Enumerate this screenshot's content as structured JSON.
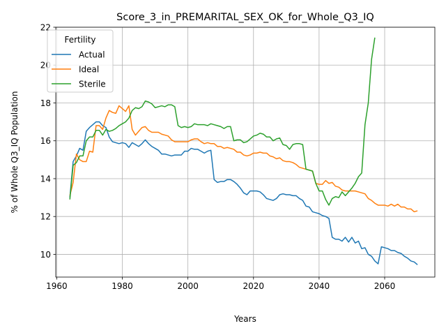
{
  "chart_data": {
    "type": "line",
    "title": "Score_3_in_PREMARITAL_SEX_OK_for_Whole_Q3_IQ",
    "xlabel": "Years",
    "ylabel": "% of Whole Q3_IQ Population",
    "xlim": [
      1959.7,
      2075.3
    ],
    "ylim": [
      8.8,
      22.0
    ],
    "xticks": [
      1960,
      1980,
      2000,
      2020,
      2040,
      2060
    ],
    "yticks": [
      10,
      12,
      14,
      16,
      18,
      20,
      22
    ],
    "grid": true,
    "legend": {
      "title": "Fertility",
      "placement": "top-left"
    },
    "series": [
      {
        "name": "Actual",
        "color": "#1f77b4",
        "points": [
          [
            1964,
            13.0
          ],
          [
            1965,
            14.9
          ],
          [
            1966,
            15.2
          ],
          [
            1967,
            15.6
          ],
          [
            1968,
            15.5
          ],
          [
            1969,
            16.5
          ],
          [
            1970,
            16.7
          ],
          [
            1971,
            16.85
          ],
          [
            1972,
            17.0
          ],
          [
            1973,
            17.0
          ],
          [
            1974,
            16.8
          ],
          [
            1975,
            16.7
          ],
          [
            1976,
            16.2
          ],
          [
            1977,
            15.95
          ],
          [
            1978,
            15.9
          ],
          [
            1979,
            15.85
          ],
          [
            1980,
            15.9
          ],
          [
            1981,
            15.85
          ],
          [
            1982,
            15.65
          ],
          [
            1983,
            15.9
          ],
          [
            1984,
            15.8
          ],
          [
            1985,
            15.7
          ],
          [
            1986,
            15.85
          ],
          [
            1987,
            16.05
          ],
          [
            1988,
            15.85
          ],
          [
            1989,
            15.7
          ],
          [
            1990,
            15.6
          ],
          [
            1991,
            15.5
          ],
          [
            1992,
            15.3
          ],
          [
            1993,
            15.3
          ],
          [
            1994,
            15.25
          ],
          [
            1995,
            15.2
          ],
          [
            1996,
            15.25
          ],
          [
            1997,
            15.25
          ],
          [
            1998,
            15.25
          ],
          [
            1999,
            15.45
          ],
          [
            2000,
            15.45
          ],
          [
            2001,
            15.6
          ],
          [
            2002,
            15.55
          ],
          [
            2003,
            15.55
          ],
          [
            2004,
            15.45
          ],
          [
            2005,
            15.35
          ],
          [
            2006,
            15.45
          ],
          [
            2007,
            15.5
          ],
          [
            2008,
            13.95
          ],
          [
            2009,
            13.8
          ],
          [
            2010,
            13.85
          ],
          [
            2011,
            13.85
          ],
          [
            2012,
            13.95
          ],
          [
            2013,
            13.95
          ],
          [
            2014,
            13.85
          ],
          [
            2015,
            13.7
          ],
          [
            2016,
            13.5
          ],
          [
            2017,
            13.25
          ],
          [
            2018,
            13.15
          ],
          [
            2019,
            13.35
          ],
          [
            2020,
            13.35
          ],
          [
            2021,
            13.35
          ],
          [
            2022,
            13.3
          ],
          [
            2023,
            13.15
          ],
          [
            2024,
            12.95
          ],
          [
            2025,
            12.9
          ],
          [
            2026,
            12.85
          ],
          [
            2027,
            12.95
          ],
          [
            2028,
            13.15
          ],
          [
            2029,
            13.2
          ],
          [
            2030,
            13.15
          ],
          [
            2031,
            13.15
          ],
          [
            2032,
            13.1
          ],
          [
            2033,
            13.1
          ],
          [
            2034,
            12.95
          ],
          [
            2035,
            12.85
          ],
          [
            2036,
            12.55
          ],
          [
            2037,
            12.5
          ],
          [
            2038,
            12.25
          ],
          [
            2039,
            12.2
          ],
          [
            2040,
            12.15
          ],
          [
            2041,
            12.05
          ],
          [
            2042,
            12.0
          ],
          [
            2043,
            11.9
          ],
          [
            2044,
            10.9
          ],
          [
            2045,
            10.8
          ],
          [
            2046,
            10.8
          ],
          [
            2047,
            10.7
          ],
          [
            2048,
            10.9
          ],
          [
            2049,
            10.65
          ],
          [
            2050,
            10.9
          ],
          [
            2051,
            10.6
          ],
          [
            2052,
            10.7
          ],
          [
            2053,
            10.3
          ],
          [
            2054,
            10.35
          ],
          [
            2055,
            10.0
          ],
          [
            2056,
            9.9
          ],
          [
            2057,
            9.65
          ],
          [
            2058,
            9.5
          ],
          [
            2059,
            10.4
          ],
          [
            2060,
            10.35
          ],
          [
            2061,
            10.3
          ],
          [
            2062,
            10.2
          ],
          [
            2063,
            10.2
          ],
          [
            2064,
            10.1
          ],
          [
            2065,
            10.05
          ],
          [
            2066,
            9.9
          ],
          [
            2067,
            9.8
          ],
          [
            2068,
            9.65
          ],
          [
            2069,
            9.6
          ],
          [
            2070,
            9.45
          ]
        ]
      },
      {
        "name": "Ideal",
        "color": "#ff7f0e",
        "points": [
          [
            1964,
            13.1
          ],
          [
            1965,
            13.8
          ],
          [
            1966,
            15.3
          ],
          [
            1967,
            15.0
          ],
          [
            1968,
            14.9
          ],
          [
            1969,
            14.9
          ],
          [
            1970,
            15.45
          ],
          [
            1971,
            15.4
          ],
          [
            1972,
            16.8
          ],
          [
            1973,
            16.8
          ],
          [
            1974,
            16.6
          ],
          [
            1975,
            17.2
          ],
          [
            1976,
            17.6
          ],
          [
            1977,
            17.5
          ],
          [
            1978,
            17.45
          ],
          [
            1979,
            17.85
          ],
          [
            1980,
            17.7
          ],
          [
            1981,
            17.55
          ],
          [
            1982,
            17.85
          ],
          [
            1983,
            16.6
          ],
          [
            1984,
            16.3
          ],
          [
            1985,
            16.5
          ],
          [
            1986,
            16.7
          ],
          [
            1987,
            16.75
          ],
          [
            1988,
            16.55
          ],
          [
            1989,
            16.45
          ],
          [
            1990,
            16.45
          ],
          [
            1991,
            16.45
          ],
          [
            1992,
            16.35
          ],
          [
            1993,
            16.3
          ],
          [
            1994,
            16.25
          ],
          [
            1995,
            16.05
          ],
          [
            1996,
            15.95
          ],
          [
            1997,
            15.95
          ],
          [
            1998,
            15.95
          ],
          [
            1999,
            15.95
          ],
          [
            2000,
            15.95
          ],
          [
            2001,
            16.05
          ],
          [
            2002,
            16.1
          ],
          [
            2003,
            16.1
          ],
          [
            2004,
            15.95
          ],
          [
            2005,
            15.85
          ],
          [
            2006,
            15.9
          ],
          [
            2007,
            15.85
          ],
          [
            2008,
            15.85
          ],
          [
            2009,
            15.7
          ],
          [
            2010,
            15.7
          ],
          [
            2011,
            15.6
          ],
          [
            2012,
            15.65
          ],
          [
            2013,
            15.6
          ],
          [
            2014,
            15.55
          ],
          [
            2015,
            15.4
          ],
          [
            2016,
            15.4
          ],
          [
            2017,
            15.25
          ],
          [
            2018,
            15.2
          ],
          [
            2019,
            15.25
          ],
          [
            2020,
            15.35
          ],
          [
            2021,
            15.35
          ],
          [
            2022,
            15.4
          ],
          [
            2023,
            15.35
          ],
          [
            2024,
            15.35
          ],
          [
            2025,
            15.2
          ],
          [
            2026,
            15.15
          ],
          [
            2027,
            15.05
          ],
          [
            2028,
            15.1
          ],
          [
            2029,
            14.95
          ],
          [
            2030,
            14.9
          ],
          [
            2031,
            14.9
          ],
          [
            2032,
            14.85
          ],
          [
            2033,
            14.75
          ],
          [
            2034,
            14.6
          ],
          [
            2035,
            14.55
          ],
          [
            2036,
            14.5
          ],
          [
            2037,
            14.45
          ],
          [
            2038,
            14.4
          ],
          [
            2039,
            13.75
          ],
          [
            2040,
            13.7
          ],
          [
            2041,
            13.7
          ],
          [
            2042,
            13.9
          ],
          [
            2043,
            13.75
          ],
          [
            2044,
            13.8
          ],
          [
            2045,
            13.6
          ],
          [
            2046,
            13.55
          ],
          [
            2047,
            13.4
          ],
          [
            2048,
            13.35
          ],
          [
            2049,
            13.35
          ],
          [
            2050,
            13.35
          ],
          [
            2051,
            13.35
          ],
          [
            2052,
            13.3
          ],
          [
            2053,
            13.25
          ],
          [
            2054,
            13.2
          ],
          [
            2055,
            12.95
          ],
          [
            2056,
            12.85
          ],
          [
            2057,
            12.7
          ],
          [
            2058,
            12.6
          ],
          [
            2059,
            12.6
          ],
          [
            2060,
            12.6
          ],
          [
            2061,
            12.55
          ],
          [
            2062,
            12.65
          ],
          [
            2063,
            12.55
          ],
          [
            2064,
            12.65
          ],
          [
            2065,
            12.5
          ],
          [
            2066,
            12.5
          ],
          [
            2067,
            12.4
          ],
          [
            2068,
            12.4
          ],
          [
            2069,
            12.25
          ],
          [
            2070,
            12.3
          ]
        ]
      },
      {
        "name": "Sterile",
        "color": "#2ca02c",
        "points": [
          [
            1964,
            12.9
          ],
          [
            1965,
            14.7
          ],
          [
            1966,
            14.85
          ],
          [
            1967,
            15.2
          ],
          [
            1968,
            15.2
          ],
          [
            1969,
            16.0
          ],
          [
            1970,
            16.2
          ],
          [
            1971,
            16.2
          ],
          [
            1972,
            16.55
          ],
          [
            1973,
            16.55
          ],
          [
            1974,
            16.3
          ],
          [
            1975,
            16.6
          ],
          [
            1976,
            16.5
          ],
          [
            1977,
            16.55
          ],
          [
            1978,
            16.65
          ],
          [
            1979,
            16.8
          ],
          [
            1980,
            16.9
          ],
          [
            1981,
            17.0
          ],
          [
            1982,
            17.2
          ],
          [
            1983,
            17.6
          ],
          [
            1984,
            17.75
          ],
          [
            1985,
            17.7
          ],
          [
            1986,
            17.8
          ],
          [
            1987,
            18.1
          ],
          [
            1988,
            18.05
          ],
          [
            1989,
            17.95
          ],
          [
            1990,
            17.75
          ],
          [
            1991,
            17.8
          ],
          [
            1992,
            17.85
          ],
          [
            1993,
            17.8
          ],
          [
            1994,
            17.9
          ],
          [
            1995,
            17.9
          ],
          [
            1996,
            17.8
          ],
          [
            1997,
            16.8
          ],
          [
            1998,
            16.7
          ],
          [
            1999,
            16.75
          ],
          [
            2000,
            16.7
          ],
          [
            2001,
            16.75
          ],
          [
            2002,
            16.9
          ],
          [
            2003,
            16.85
          ],
          [
            2004,
            16.85
          ],
          [
            2005,
            16.85
          ],
          [
            2006,
            16.8
          ],
          [
            2007,
            16.9
          ],
          [
            2008,
            16.85
          ],
          [
            2009,
            16.8
          ],
          [
            2010,
            16.75
          ],
          [
            2011,
            16.65
          ],
          [
            2012,
            16.75
          ],
          [
            2013,
            16.75
          ],
          [
            2014,
            16.0
          ],
          [
            2015,
            16.05
          ],
          [
            2016,
            16.05
          ],
          [
            2017,
            15.9
          ],
          [
            2018,
            15.95
          ],
          [
            2019,
            16.1
          ],
          [
            2020,
            16.25
          ],
          [
            2021,
            16.3
          ],
          [
            2022,
            16.4
          ],
          [
            2023,
            16.35
          ],
          [
            2024,
            16.2
          ],
          [
            2025,
            16.2
          ],
          [
            2026,
            16.0
          ],
          [
            2027,
            16.1
          ],
          [
            2028,
            16.15
          ],
          [
            2029,
            15.8
          ],
          [
            2030,
            15.75
          ],
          [
            2031,
            15.55
          ],
          [
            2032,
            15.8
          ],
          [
            2033,
            15.85
          ],
          [
            2034,
            15.85
          ],
          [
            2035,
            15.8
          ],
          [
            2036,
            14.5
          ],
          [
            2037,
            14.45
          ],
          [
            2038,
            14.4
          ],
          [
            2039,
            13.75
          ],
          [
            2040,
            13.35
          ],
          [
            2041,
            13.35
          ],
          [
            2042,
            12.9
          ],
          [
            2043,
            12.6
          ],
          [
            2044,
            12.95
          ],
          [
            2045,
            13.05
          ],
          [
            2046,
            13.0
          ],
          [
            2047,
            13.3
          ],
          [
            2048,
            13.1
          ],
          [
            2049,
            13.3
          ],
          [
            2050,
            13.5
          ],
          [
            2051,
            13.75
          ],
          [
            2052,
            14.1
          ],
          [
            2053,
            14.3
          ],
          [
            2054,
            16.85
          ],
          [
            2055,
            18.0
          ],
          [
            2056,
            20.3
          ],
          [
            2057,
            21.45
          ]
        ]
      }
    ]
  }
}
